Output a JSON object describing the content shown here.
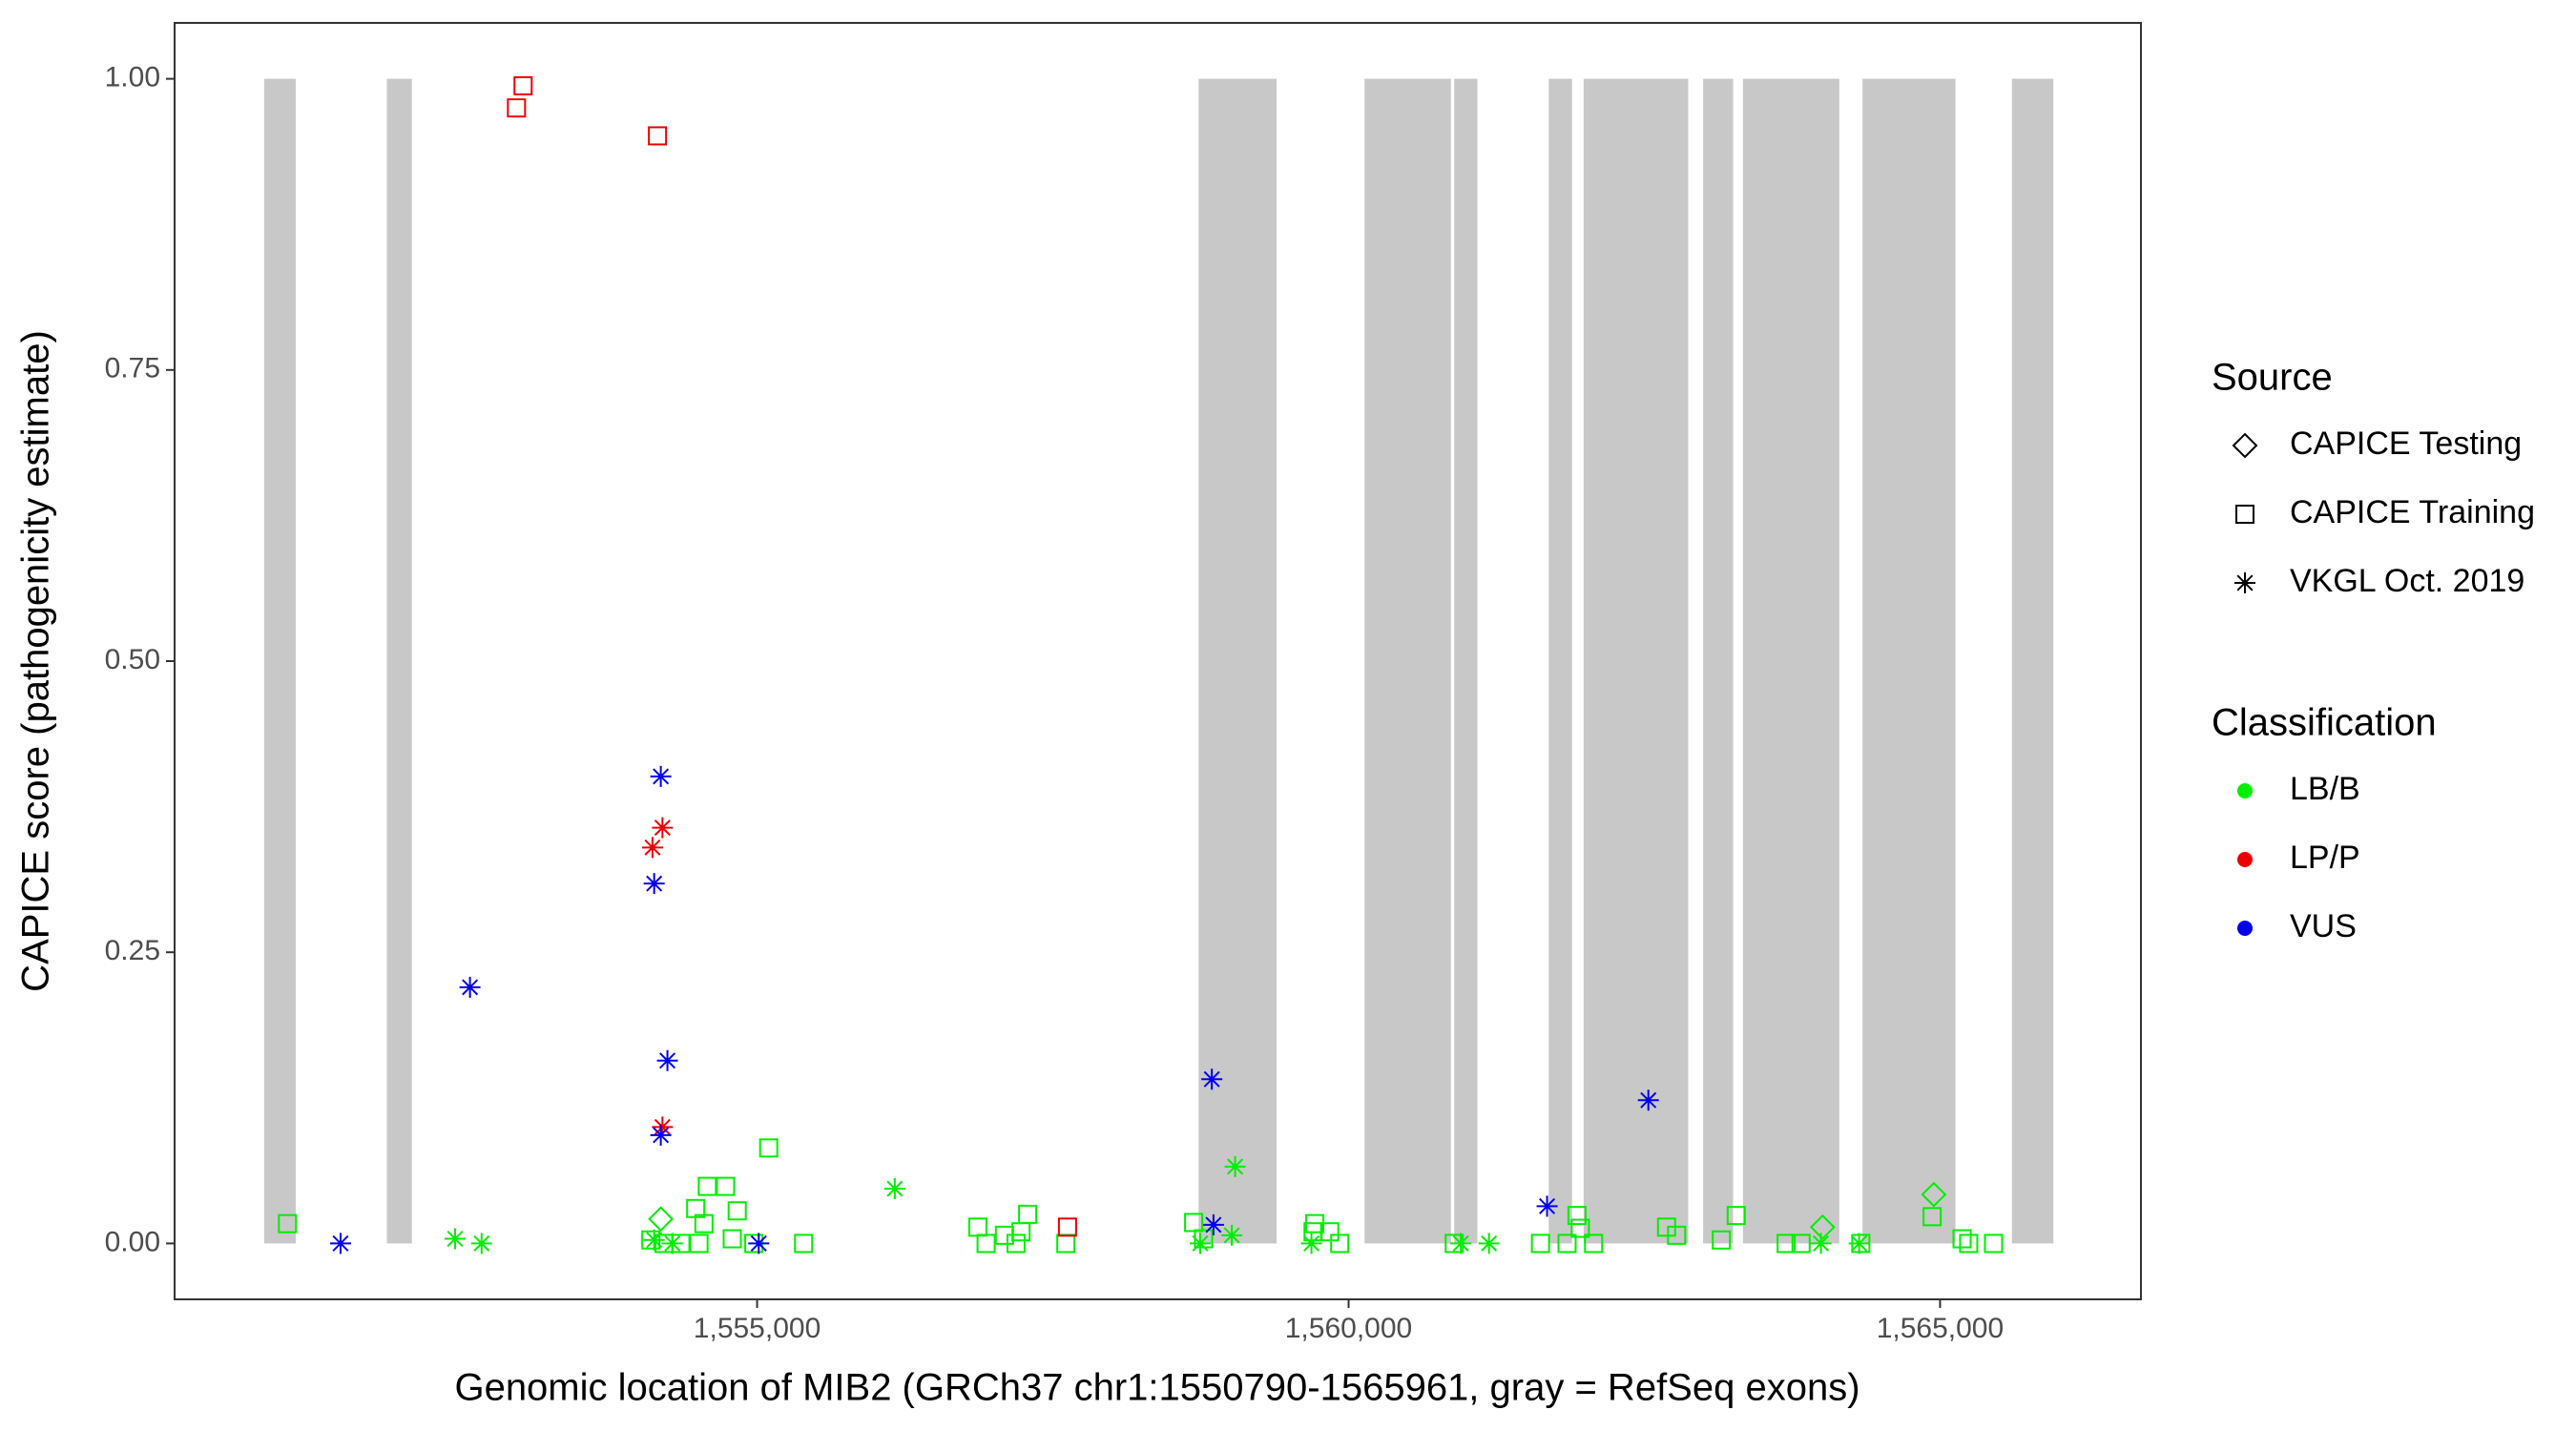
{
  "chart_data": {
    "type": "scatter",
    "xlabel": "Genomic location of MIB2 (GRCh37 chr1:1550790-1565961, gray = RefSeq exons)",
    "ylabel": "CAPICE score (pathogenicity estimate)",
    "xlim": [
      1550076,
      1566698
    ],
    "ylim": [
      -0.048,
      1.048
    ],
    "xticks": [
      {
        "value": 1555000,
        "label": "1,555,000"
      },
      {
        "value": 1560000,
        "label": "1,560,000"
      },
      {
        "value": 1565000,
        "label": "1,565,000"
      }
    ],
    "yticks": [
      {
        "value": 0,
        "label": "0.00"
      },
      {
        "value": 0.25,
        "label": "0.25"
      },
      {
        "value": 0.5,
        "label": "0.50"
      },
      {
        "value": 0.75,
        "label": "0.75"
      },
      {
        "value": 1,
        "label": "1.00"
      }
    ],
    "exons": {
      "color": "#c8c8c8",
      "height": 1,
      "starts": [
        1550833,
        1551871,
        1558732,
        1560135,
        1560893,
        1561692,
        1561987,
        1562997,
        1563334,
        1564344,
        1565607
      ],
      "ends": [
        1551100,
        1552082,
        1559391,
        1560865,
        1561089,
        1561889,
        1562871,
        1563250,
        1564148,
        1565130,
        1565958
      ]
    },
    "legend": {
      "source": {
        "title": "Source",
        "items": [
          {
            "label": "CAPICE Testing",
            "shape": "diamond"
          },
          {
            "label": "CAPICE Training",
            "shape": "square"
          },
          {
            "label": "VKGL Oct. 2019",
            "shape": "star"
          }
        ]
      },
      "classification": {
        "title": "Classification",
        "items": [
          {
            "label": "LB/B",
            "color": "#00ee00"
          },
          {
            "label": "LP/P",
            "color": "#ee0000"
          },
          {
            "label": "VUS",
            "color": "#0000ee"
          }
        ]
      }
    },
    "series": [
      {
        "shape": "square",
        "color": "#00ee00",
        "x": [
          1551030,
          1554102,
          1554214,
          1554355,
          1554481,
          1554551,
          1554579,
          1554733,
          1554832,
          1554790,
          1554509,
          1554972,
          1555098,
          1555393,
          1556866,
          1556936,
          1557091,
          1557231,
          1557287,
          1557189,
          1557610,
          1558690,
          1558774,
          1559714,
          1559700,
          1559840,
          1559925,
          1560893,
          1561622,
          1561847,
          1561931,
          1561959,
          1562071,
          1562688,
          1562773,
          1563151,
          1563277,
          1563699,
          1563825,
          1564330,
          1564933,
          1565186,
          1565242,
          1565452
        ],
        "values": [
          0.017,
          0.003,
          0,
          0,
          0.03,
          0.017,
          0.049,
          0.049,
          0.028,
          0.004,
          0,
          0,
          0.082,
          0,
          0.014,
          0,
          0.007,
          0.01,
          0.025,
          0,
          0,
          0.018,
          0.004,
          0.017,
          0.01,
          0.01,
          0,
          0,
          0,
          0,
          0.024,
          0.013,
          0,
          0.014,
          0.007,
          0.003,
          0.024,
          0,
          0,
          0,
          0.023,
          0.004,
          0,
          0
        ]
      },
      {
        "shape": "diamond",
        "color": "#00ee00",
        "x": [
          1554186,
          1564007,
          1564947
        ],
        "values": [
          0.021,
          0.014,
          0.042
        ]
      },
      {
        "shape": "star",
        "color": "#00ee00",
        "x": [
          1552447,
          1552671,
          1554130,
          1554284,
          1556164,
          1558746,
          1559013,
          1559041,
          1559686,
          1560949,
          1561187,
          1563993,
          1564316
        ],
        "values": [
          0.004,
          0,
          0.003,
          0,
          0.047,
          0,
          0.007,
          0.066,
          0,
          0,
          0,
          0,
          0
        ]
      },
      {
        "shape": "square",
        "color": "#ee0000",
        "x": [
          1552966,
          1553022,
          1554158,
          1557624
        ],
        "values": [
          0.975,
          0.994,
          0.951,
          0.014
        ]
      },
      {
        "shape": "star",
        "color": "#ee0000",
        "x": [
          1554116,
          1554200,
          1554200
        ],
        "values": [
          0.34,
          0.357,
          0.1
        ]
      },
      {
        "shape": "star",
        "color": "#0000ee",
        "x": [
          1551479,
          1552573,
          1554130,
          1554186,
          1554242,
          1554186,
          1555014,
          1558844,
          1558858,
          1561678,
          1562534
        ],
        "values": [
          0,
          0.22,
          0.309,
          0.401,
          0.157,
          0.093,
          0,
          0.141,
          0.016,
          0.032,
          0.123
        ]
      }
    ]
  }
}
